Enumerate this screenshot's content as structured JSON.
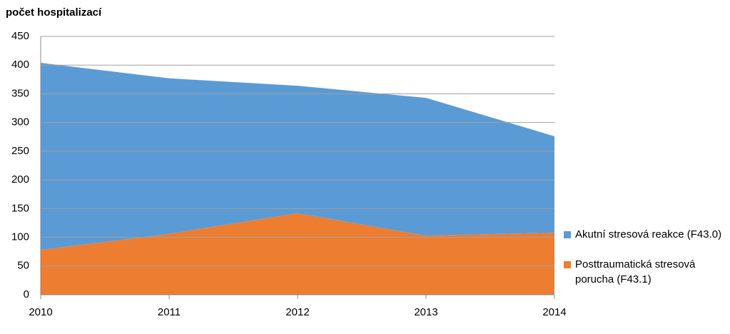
{
  "chart_data": {
    "type": "stacked_area",
    "y_label": "počet hospitalizací",
    "categories": [
      "2010",
      "2011",
      "2012",
      "2013",
      "2014"
    ],
    "series": [
      {
        "name": "Akutní stresová reakce (F43.0)",
        "color": "#5b9bd5",
        "values": [
          326,
          271,
          222,
          240,
          168
        ]
      },
      {
        "name": "Posttraumatická stresová porucha (F43.1)",
        "color": "#ed7d31",
        "values": [
          78,
          106,
          142,
          103,
          108
        ]
      }
    ],
    "ylim": [
      0,
      450
    ],
    "yticks": [
      0,
      50,
      100,
      150,
      200,
      250,
      300,
      350,
      400,
      450
    ],
    "grid": true,
    "legend": "right"
  }
}
